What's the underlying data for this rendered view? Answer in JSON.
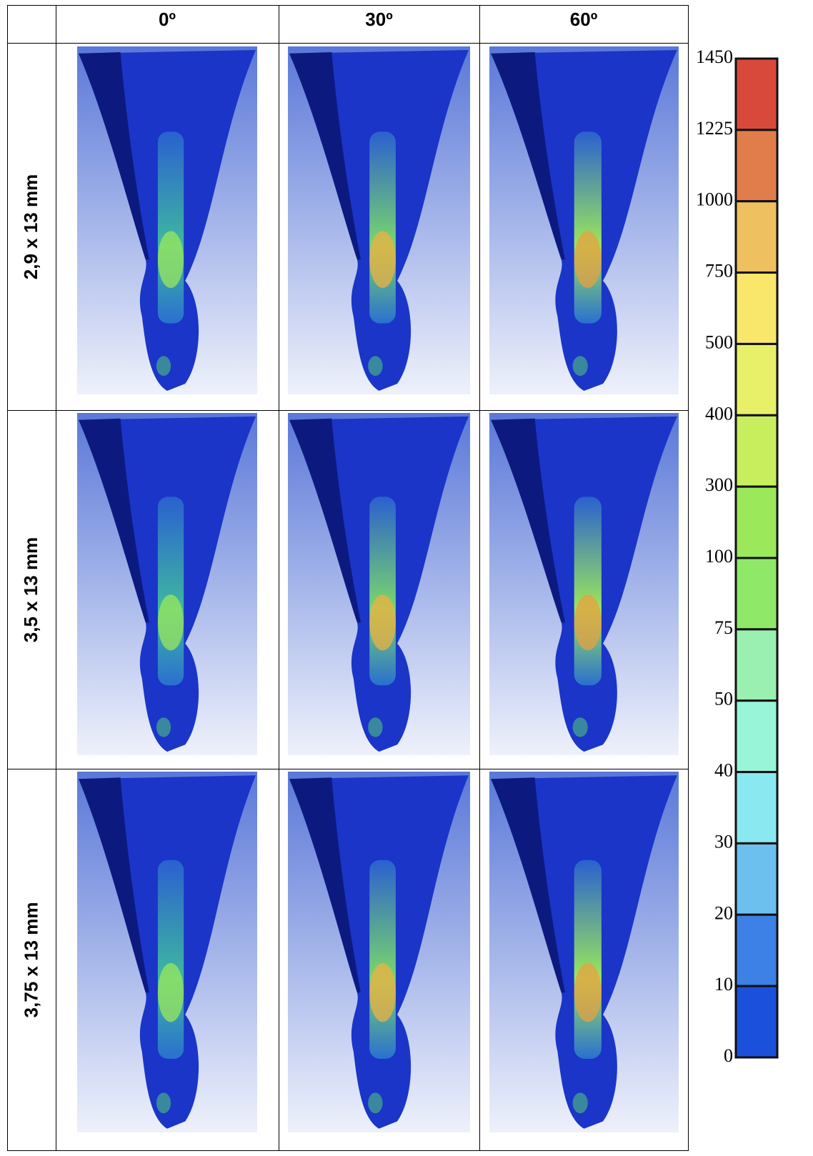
{
  "table": {
    "header": [
      "0º",
      "30º",
      "60º"
    ],
    "rows": [
      "2,9 x 13 mm",
      "3,5 x 13 mm",
      "3,75 x 13 mm"
    ]
  },
  "legend": {
    "ticks": [
      "1450",
      "1225",
      "1000",
      "750",
      "500",
      "400",
      "300",
      "100",
      "75",
      "50",
      "40",
      "30",
      "20",
      "10",
      "0"
    ],
    "colors": [
      "#d9493b",
      "#e07d4a",
      "#efc060",
      "#f9e76b",
      "#e8f06a",
      "#c8ee5e",
      "#9be85a",
      "#8fe868",
      "#9af0b0",
      "#98f5d8",
      "#8ae8f0",
      "#6cc0ee",
      "#3d80e6",
      "#1a50dc"
    ]
  }
}
